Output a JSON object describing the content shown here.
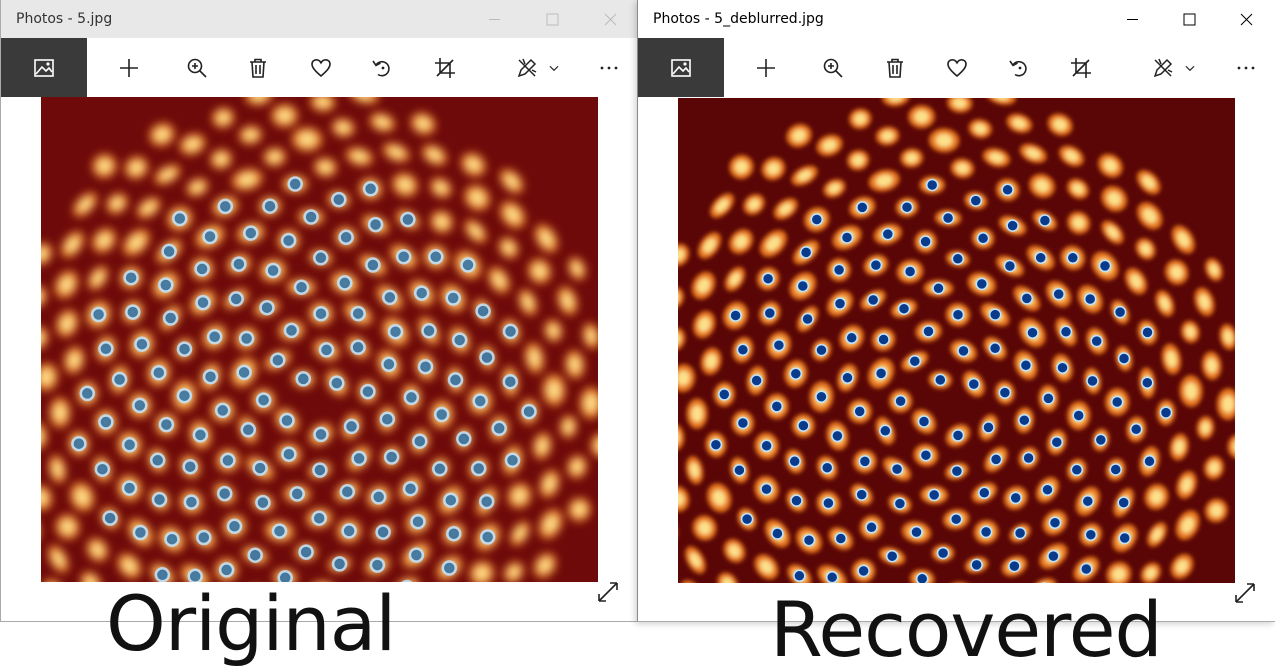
{
  "left_window": {
    "title": "Photos - 5.jpg",
    "controls": [
      "minimize",
      "maximize",
      "close"
    ],
    "toolbar": {
      "icons": [
        "photo-view-icon",
        "add-icon",
        "zoom-in-icon",
        "delete-icon",
        "favorite-icon",
        "rotate-icon",
        "crop-icon",
        "edit-draw-icon",
        "chevron-down-icon",
        "more-icon"
      ]
    },
    "image": {
      "description_colors": {
        "background": "#6e0a0a",
        "blob": "#f08a2a",
        "core": "#2a6fa8"
      }
    },
    "caption": "Original"
  },
  "right_window": {
    "title": "Photos - 5_deblurred.jpg",
    "controls": [
      "minimize",
      "maximize",
      "close"
    ],
    "toolbar": {
      "icons": [
        "photo-view-icon",
        "add-icon",
        "zoom-in-icon",
        "delete-icon",
        "favorite-icon",
        "rotate-icon",
        "crop-icon",
        "edit-draw-icon",
        "chevron-down-icon",
        "more-icon"
      ]
    },
    "image": {
      "description_colors": {
        "background": "#5a0606",
        "blob": "#e8781a",
        "core": "#0a3a8a"
      }
    },
    "caption": "Recovered"
  },
  "colors": {
    "active_tab": "#3a3a3a",
    "inactive_titlebar": "#e8e8e8",
    "active_titlebar": "#ffffff"
  }
}
